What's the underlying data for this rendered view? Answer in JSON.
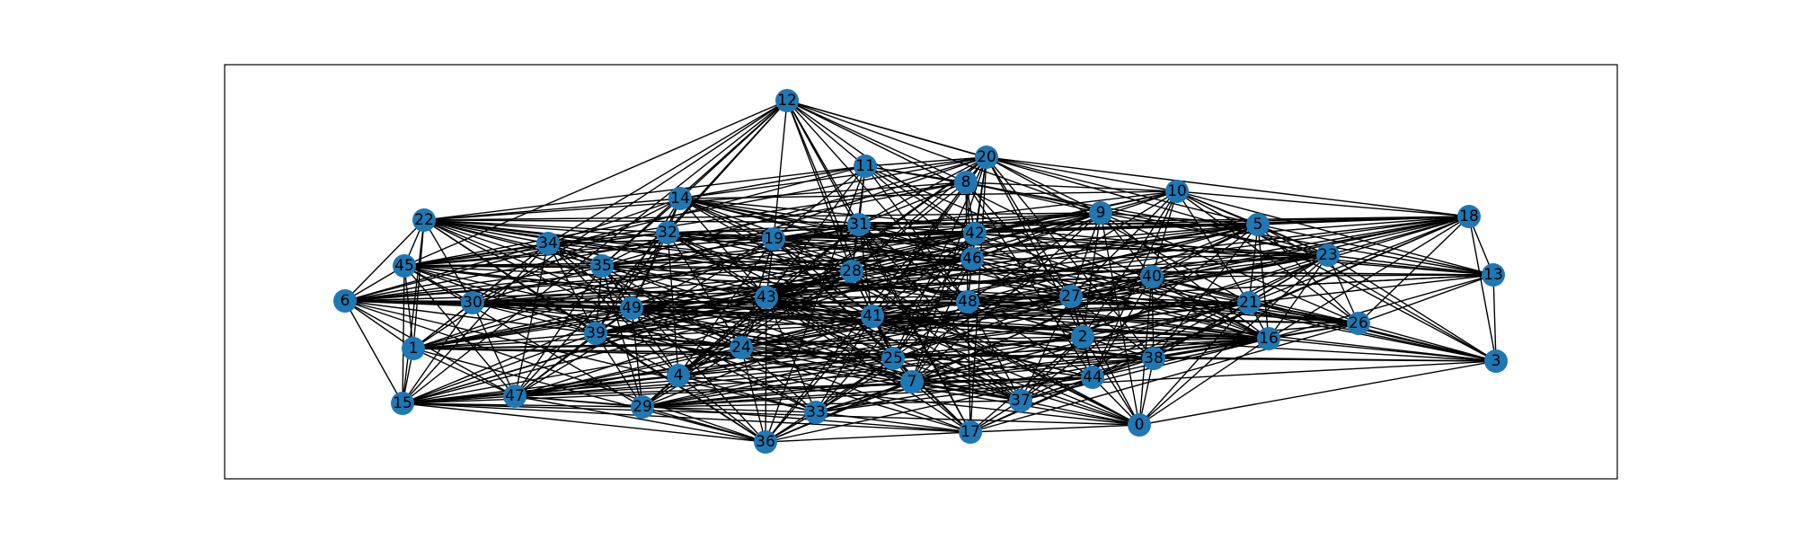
{
  "graph": {
    "node_color": "#1f77b4",
    "edge_color": "#000000",
    "frame_color": "#000000",
    "node_count": 50,
    "nodes": [
      {
        "id": "0"
      },
      {
        "id": "1"
      },
      {
        "id": "2"
      },
      {
        "id": "3"
      },
      {
        "id": "4"
      },
      {
        "id": "5"
      },
      {
        "id": "6"
      },
      {
        "id": "7"
      },
      {
        "id": "8"
      },
      {
        "id": "9"
      },
      {
        "id": "10"
      },
      {
        "id": "11"
      },
      {
        "id": "12"
      },
      {
        "id": "13"
      },
      {
        "id": "14"
      },
      {
        "id": "15"
      },
      {
        "id": "16"
      },
      {
        "id": "17"
      },
      {
        "id": "18"
      },
      {
        "id": "19"
      },
      {
        "id": "20"
      },
      {
        "id": "21"
      },
      {
        "id": "22"
      },
      {
        "id": "23"
      },
      {
        "id": "24"
      },
      {
        "id": "25"
      },
      {
        "id": "26"
      },
      {
        "id": "27"
      },
      {
        "id": "28"
      },
      {
        "id": "29"
      },
      {
        "id": "30"
      },
      {
        "id": "31"
      },
      {
        "id": "32"
      },
      {
        "id": "33"
      },
      {
        "id": "34"
      },
      {
        "id": "35"
      },
      {
        "id": "36"
      },
      {
        "id": "37"
      },
      {
        "id": "38"
      },
      {
        "id": "39"
      },
      {
        "id": "40"
      },
      {
        "id": "41"
      },
      {
        "id": "42"
      },
      {
        "id": "43"
      },
      {
        "id": "44"
      },
      {
        "id": "45"
      },
      {
        "id": "46"
      },
      {
        "id": "47"
      },
      {
        "id": "48"
      },
      {
        "id": "49"
      }
    ]
  }
}
